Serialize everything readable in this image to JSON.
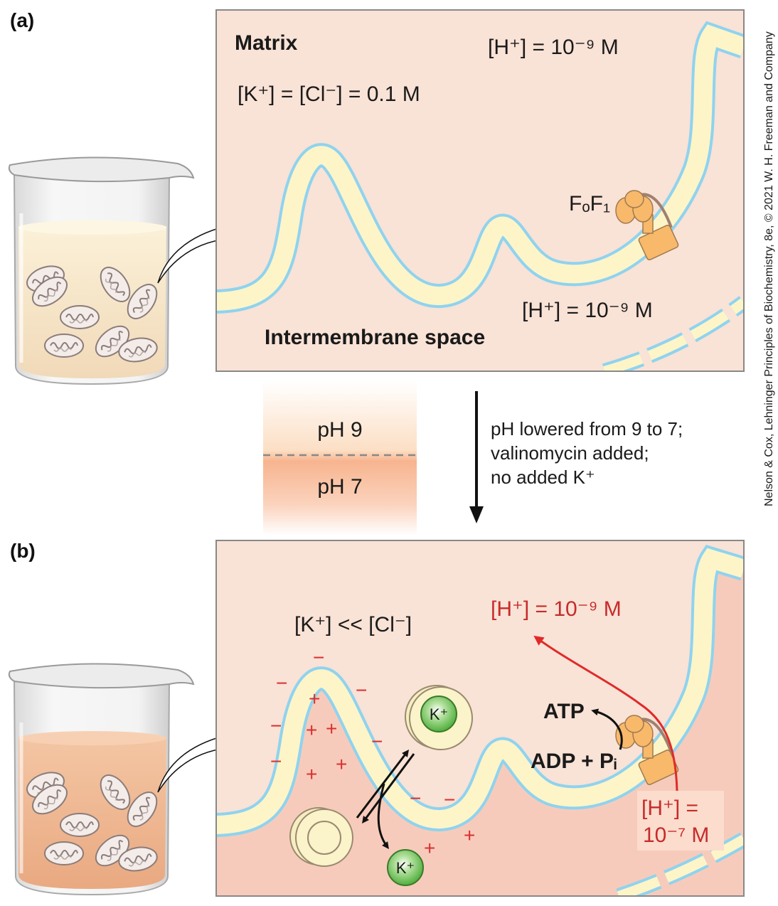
{
  "panel_a": {
    "letter": "(a)",
    "matrix_label": "Matrix",
    "h_matrix": "[H⁺] = 10⁻⁹ M",
    "kcl": "[K⁺] = [Cl⁻] = 0.1 M",
    "atp_synthase": "FₒF₁",
    "h_intermembrane": "[H⁺] = 10⁻⁹ M",
    "intermembrane_label": "Intermembrane space"
  },
  "middle": {
    "ph_top": "pH 9",
    "ph_bottom": "pH 7",
    "step_line1": "pH lowered from 9 to 7;",
    "step_line2": "valinomycin added;",
    "step_line3": "no added K⁺"
  },
  "panel_b": {
    "letter": "(b)",
    "k_vs_cl": "[K⁺] << [Cl⁻]",
    "h_matrix": "[H⁺] = 10⁻⁹ M",
    "atp": "ATP",
    "adp_pi": "ADP + Pᵢ",
    "h_intermembrane_line1": "[H⁺] =",
    "h_intermembrane_line2": "10⁻⁷ M",
    "k_ion_upper": "K⁺",
    "k_ion_lower": "K⁺"
  },
  "credit": "Nelson & Cox, Lehninger Principles of Biochemistry, 8e, © 2021 W. H. Freeman and Company",
  "colors": {
    "matrix_bg": "#f9e2d6",
    "intermembrane_bg": "#f7cbbb",
    "membrane_edge": "#8fd3ef",
    "membrane_core": "#fdf5c8",
    "atp_synthase": "#f8b96b",
    "potassium": "#5fbb4a",
    "charge_red": "#d93030",
    "proton_path": "#e02a2a"
  }
}
